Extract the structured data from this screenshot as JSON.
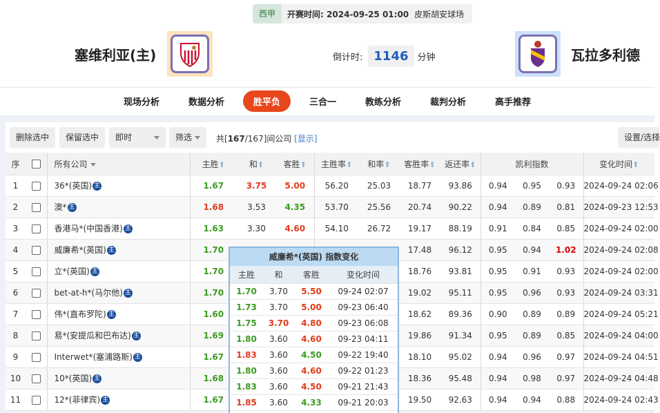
{
  "match": {
    "league": "西甲",
    "time_label": "开赛时间:",
    "time": "2024-09-25 01:00",
    "venue": "皮斯胡安球场",
    "home": "塞维利亚(主)",
    "away": "瓦拉多利德",
    "countdown_label": "倒计时:",
    "countdown": "1146",
    "countdown_unit": "分钟"
  },
  "nav": [
    "现场分析",
    "数据分析",
    "胜平负",
    "三合一",
    "教练分析",
    "裁判分析",
    "高手推荐"
  ],
  "nav_active": 2,
  "toolbar": {
    "delete": "删除选中",
    "keep": "保留选中",
    "mode": "即时",
    "filter": "筛选",
    "count_pre": "共[",
    "count": "167",
    "count_total": "/167]间公司",
    "show": "[显示]",
    "settings": "设置/选择"
  },
  "headers": {
    "seq": "序",
    "company": "所有公司",
    "home": "主胜",
    "draw": "和",
    "away": "客胜",
    "home_rate": "主胜率",
    "draw_rate": "和率",
    "away_rate": "客胜率",
    "return": "返还率",
    "kelly": "凯利指数",
    "time": "变化时间"
  },
  "rows": [
    {
      "n": "1",
      "c": "36*(英国)",
      "h": "1.67",
      "d": "3.75",
      "a": "5.00",
      "hc": "g",
      "dc": "r",
      "ac": "r",
      "hr": "56.20",
      "dr": "25.03",
      "ar": "18.77",
      "rt": "93.86",
      "k1": "0.94",
      "k2": "0.95",
      "k3": "0.93",
      "t": "2024-09-24 02:06"
    },
    {
      "n": "2",
      "c": "澳*",
      "h": "1.68",
      "d": "3.53",
      "a": "4.35",
      "hc": "r",
      "dc": "",
      "ac": "g",
      "hr": "53.70",
      "dr": "25.56",
      "ar": "20.74",
      "rt": "90.22",
      "k1": "0.94",
      "k2": "0.89",
      "k3": "0.81",
      "t": "2024-09-23 12:53"
    },
    {
      "n": "3",
      "c": "香港马*(中国香港)",
      "h": "1.63",
      "d": "3.30",
      "a": "4.60",
      "hc": "g",
      "dc": "",
      "ac": "r",
      "hr": "54.10",
      "dr": "26.72",
      "ar": "19.17",
      "rt": "88.19",
      "k1": "0.91",
      "k2": "0.84",
      "k3": "0.85",
      "t": "2024-09-24 02:00"
    },
    {
      "n": "4",
      "c": "威廉希*(英国)",
      "h": "1.70",
      "hc": "g",
      "ar": "17.48",
      "rt": "96.12",
      "k1": "0.95",
      "k2": "0.94",
      "k3": "1.02",
      "k3c": "rr",
      "t": "2024-09-24 02:08"
    },
    {
      "n": "5",
      "c": "立*(英国)",
      "h": "1.70",
      "hc": "g",
      "ar": "18.76",
      "rt": "93.81",
      "k1": "0.95",
      "k2": "0.91",
      "k3": "0.93",
      "t": "2024-09-24 02:00"
    },
    {
      "n": "6",
      "c": "bet-at-h*(马尔他)",
      "h": "1.70",
      "hc": "g",
      "ar": "19.02",
      "rt": "95.11",
      "k1": "0.95",
      "k2": "0.96",
      "k3": "0.93",
      "t": "2024-09-24 03:31"
    },
    {
      "n": "7",
      "c": "伟*(直布罗陀)",
      "h": "1.60",
      "hc": "g",
      "ar": "18.62",
      "rt": "89.36",
      "k1": "0.90",
      "k2": "0.89",
      "k3": "0.89",
      "t": "2024-09-24 05:21"
    },
    {
      "n": "8",
      "c": "易*(安提瓜和巴布达)",
      "h": "1.69",
      "hc": "g",
      "ar": "19.86",
      "rt": "91.34",
      "k1": "0.95",
      "k2": "0.89",
      "k3": "0.85",
      "t": "2024-09-24 04:00"
    },
    {
      "n": "9",
      "c": "Interwet*(塞浦路斯)",
      "h": "1.67",
      "hc": "g",
      "ar": "18.10",
      "rt": "95.02",
      "k1": "0.94",
      "k2": "0.96",
      "k3": "0.97",
      "t": "2024-09-24 04:51"
    },
    {
      "n": "10",
      "c": "10*(英国)",
      "h": "1.68",
      "hc": "g",
      "ar": "18.36",
      "rt": "95.48",
      "k1": "0.94",
      "k2": "0.98",
      "k3": "0.97",
      "t": "2024-09-24 04:48"
    },
    {
      "n": "11",
      "c": "12*(菲律宾)",
      "h": "1.67",
      "hc": "g",
      "ar": "19.50",
      "rt": "92.63",
      "k1": "0.94",
      "k2": "0.94",
      "k3": "0.88",
      "t": "2024-09-24 02:43"
    }
  ],
  "popup": {
    "title": "威廉希*(英国) 指数变化",
    "headers": [
      "主胜",
      "和",
      "客胜",
      "变化时间"
    ],
    "rows": [
      {
        "h": "1.70",
        "d": "3.70",
        "a": "5.50",
        "t": "09-24 02:07",
        "hc": "g",
        "dc": "",
        "ac": "r"
      },
      {
        "h": "1.73",
        "d": "3.70",
        "a": "5.00",
        "t": "09-23 06:40",
        "hc": "g",
        "dc": "",
        "ac": "r"
      },
      {
        "h": "1.75",
        "d": "3.70",
        "a": "4.80",
        "t": "09-23 06:08",
        "hc": "g",
        "dc": "r",
        "ac": "r"
      },
      {
        "h": "1.80",
        "d": "3.60",
        "a": "4.60",
        "t": "09-23 04:11",
        "hc": "g",
        "dc": "",
        "ac": "r"
      },
      {
        "h": "1.83",
        "d": "3.60",
        "a": "4.50",
        "t": "09-22 19:40",
        "hc": "r",
        "dc": "",
        "ac": "g"
      },
      {
        "h": "1.80",
        "d": "3.60",
        "a": "4.60",
        "t": "09-22 01:23",
        "hc": "g",
        "dc": "",
        "ac": "r"
      },
      {
        "h": "1.83",
        "d": "3.60",
        "a": "4.50",
        "t": "09-21 21:43",
        "hc": "g",
        "dc": "",
        "ac": "r"
      },
      {
        "h": "1.85",
        "d": "3.60",
        "a": "4.33",
        "t": "09-21 20:03",
        "hc": "r",
        "dc": "",
        "ac": "g"
      }
    ]
  },
  "colors": {
    "up": "#3c9b22",
    "down": "#e23b1a",
    "active_tab": "#e8461b",
    "accent": "#1f5fbd"
  }
}
